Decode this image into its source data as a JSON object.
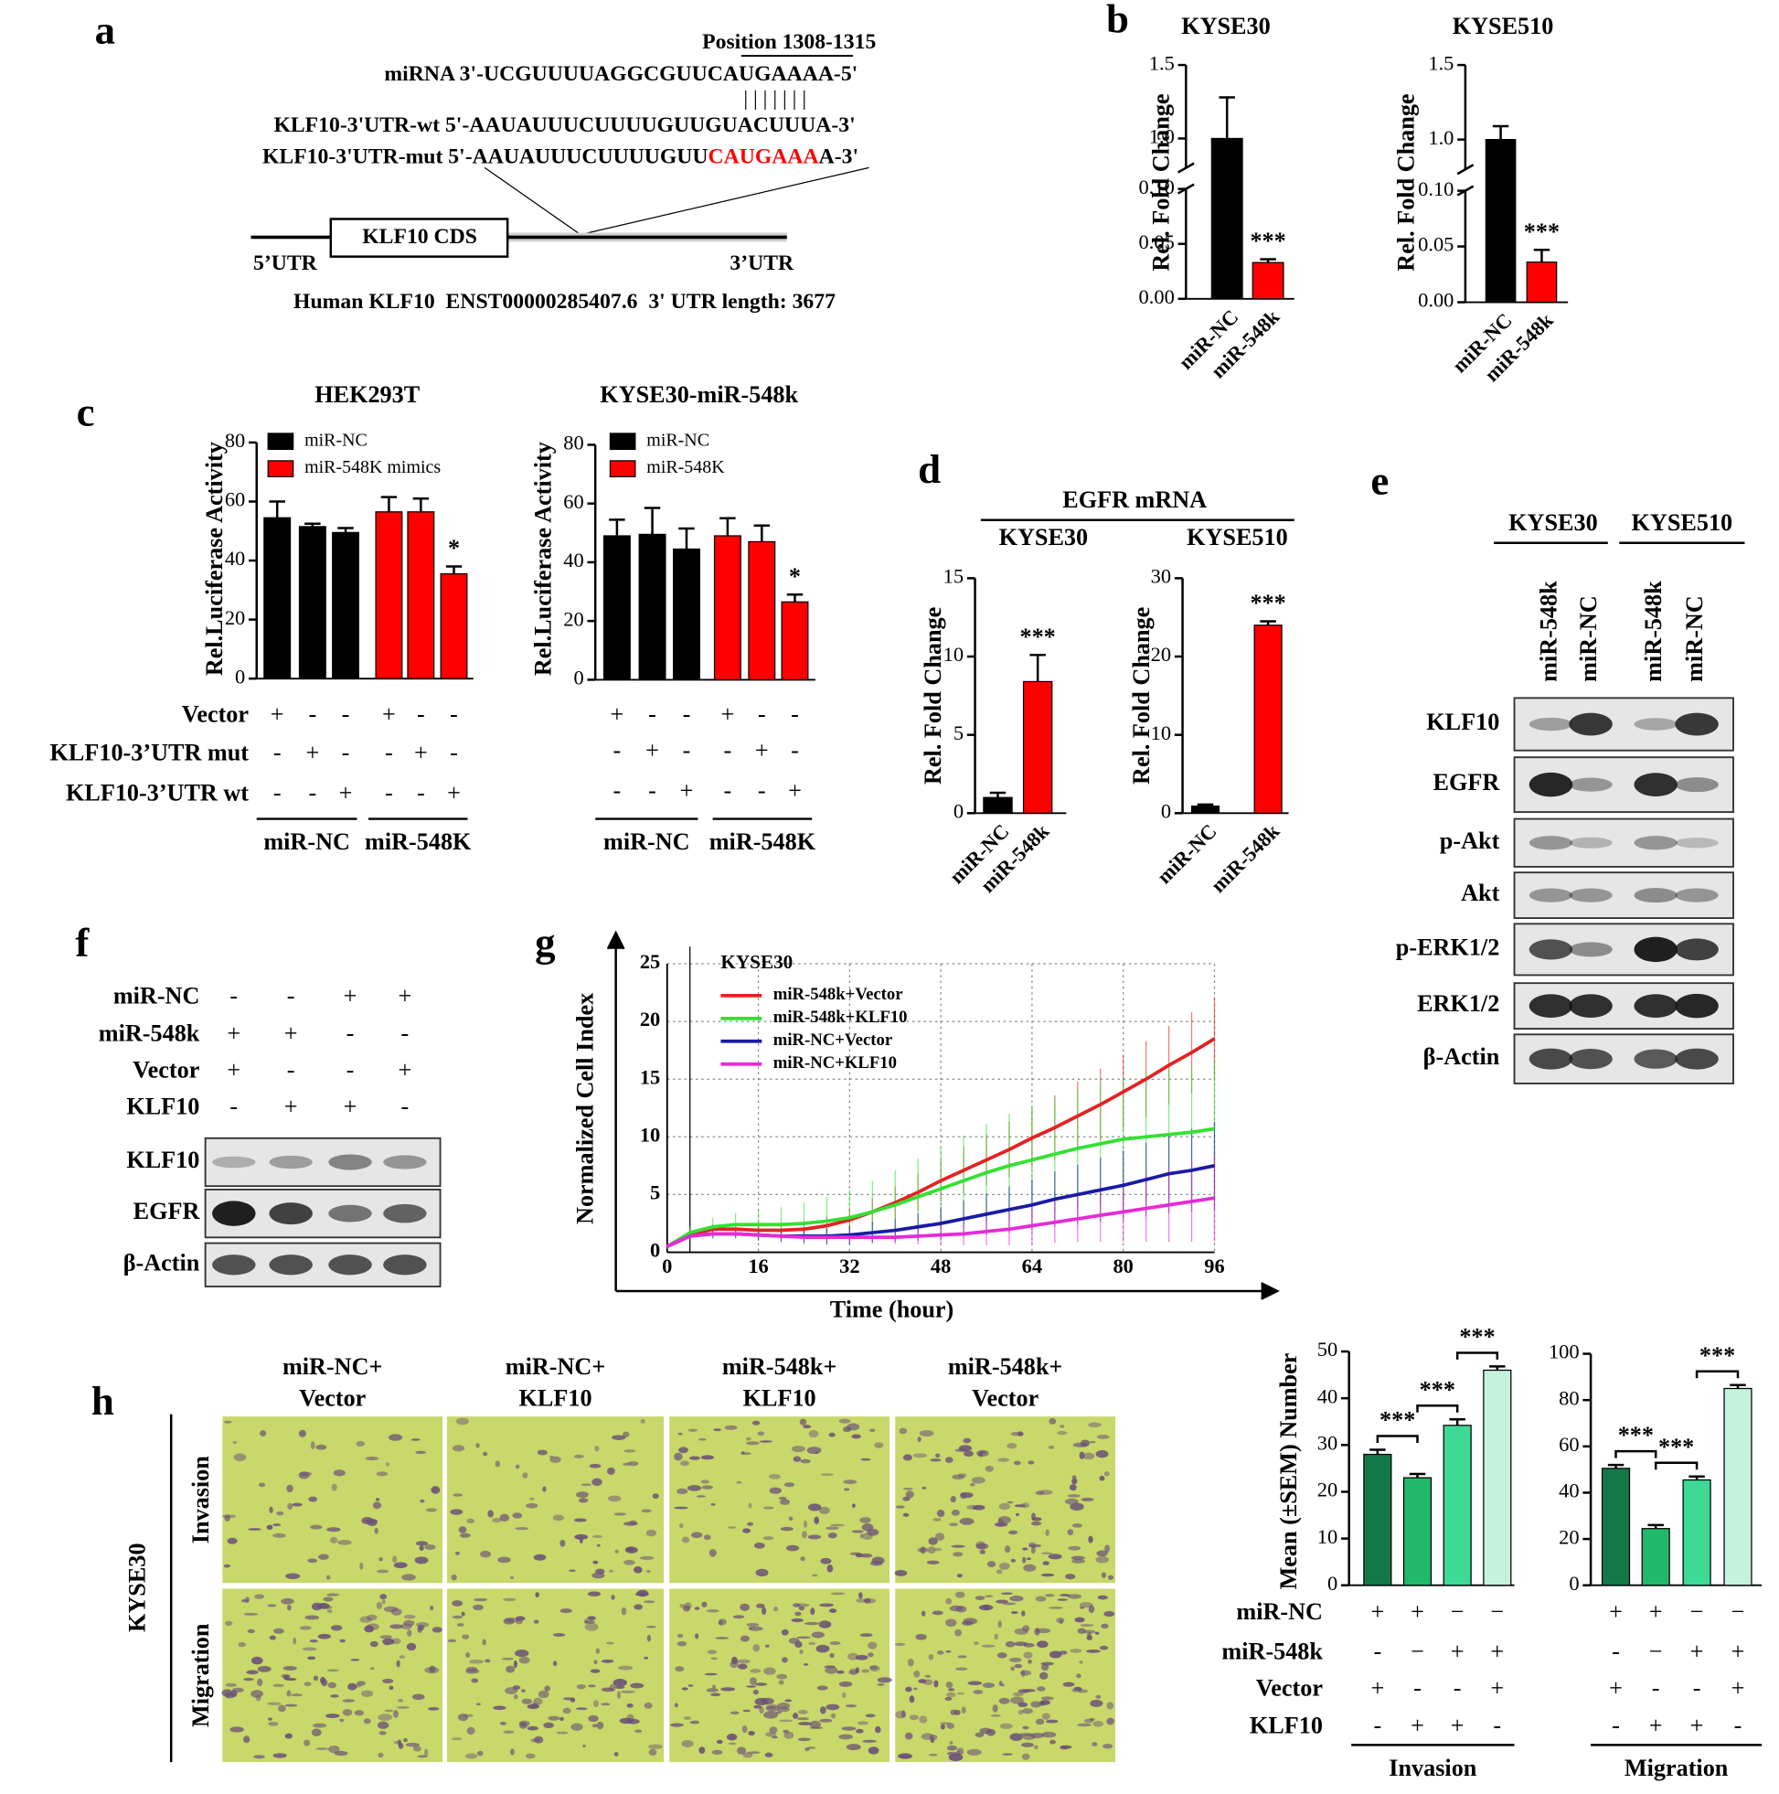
{
  "panel_labels": [
    "a",
    "b",
    "c",
    "d",
    "e",
    "f",
    "g",
    "h"
  ],
  "panel_a": {
    "position": "Position 1308-1315",
    "mirna": "miRNA 3'-UCGUUUUAGGCGUUCAUGAAAA-5'",
    "pairing": "| | | | | | |",
    "wt": "KLF10-3'UTR-wt 5'-AAUAUUUCUUUUGUUGUACUUUA-3'",
    "mut": [
      "KLF10-3'UTR-mut 5'-AAUAUUUCUUUUGUU",
      "CAUGAAA",
      "A-3'"
    ],
    "cds": "KLF10 CDS",
    "utr5": "5’UTR",
    "utr3": "3’UTR",
    "caption": "Human KLF10  ENST00000285407.6  3' UTR length: 3677"
  },
  "panel_d_header": "EGFR mRNA",
  "panel_e": {
    "cell_lines": [
      "KYSE30",
      "KYSE510"
    ],
    "lanes": [
      "miR-548k",
      "miR-NC",
      "miR-548k",
      "miR-NC"
    ],
    "proteins": [
      "KLF10",
      "EGFR",
      "p-Akt",
      "Akt",
      "p-ERK1/2",
      "ERK1/2",
      "β-Actin"
    ]
  },
  "panel_f": {
    "conditions": [
      {
        "label": "miR-NC",
        "signs": [
          "-",
          "-",
          "+",
          "+"
        ]
      },
      {
        "label": "miR-548k",
        "signs": [
          "+",
          "+",
          "-",
          "-"
        ]
      },
      {
        "label": "Vector",
        "signs": [
          "+",
          "-",
          "-",
          "+"
        ]
      },
      {
        "label": "KLF10",
        "signs": [
          "-",
          "+",
          "+",
          "-"
        ]
      }
    ],
    "proteins": [
      "KLF10",
      "EGFR",
      "β-Actin"
    ]
  },
  "panel_h_images": {
    "columns": [
      [
        "miR-NC+",
        "Vector"
      ],
      [
        "miR-NC+",
        "KLF10"
      ],
      [
        "miR-548k+",
        "KLF10"
      ],
      [
        "miR-548k+",
        "Vector"
      ]
    ],
    "rows": [
      "Invasion",
      "Migration"
    ],
    "cell_line": "KYSE30"
  },
  "chart_data": [
    {
      "type": "bar",
      "title": "KYSE30",
      "ylabel": "Rel. Fold Change",
      "categories": [
        "miR-NC",
        "miR-548k"
      ],
      "values": [
        1.0,
        0.033
      ],
      "errors": [
        0.28,
        0.003
      ],
      "colors": [
        "#000000",
        "#ff0000"
      ],
      "significance": [
        null,
        "***"
      ],
      "ylim": [
        0,
        1.5
      ],
      "ybreak": [
        0.1,
        0.8
      ],
      "yticks": [
        {
          "value": 0,
          "label": "0.00"
        },
        0.05,
        {
          "value": 0.1,
          "label": "0.10"
        },
        {
          "value": 1,
          "label": "1.0"
        },
        1.5
      ]
    },
    {
      "type": "bar",
      "title": "KYSE510",
      "ylabel": "Rel. Fold Change",
      "categories": [
        "miR-NC",
        "miR-548k"
      ],
      "values": [
        1.0,
        0.036
      ],
      "errors": [
        0.09,
        0.011
      ],
      "colors": [
        "#000000",
        "#ff0000"
      ],
      "significance": [
        null,
        "***"
      ],
      "ylim": [
        0,
        1.5
      ],
      "ybreak": [
        0.1,
        0.8
      ],
      "yticks": [
        {
          "value": 0,
          "label": "0.00"
        },
        0.05,
        {
          "value": 0.1,
          "label": "0.10"
        },
        {
          "value": 1,
          "label": "1.0"
        },
        1.5
      ]
    },
    {
      "type": "bar",
      "title": "HEK293T",
      "ylabel": "Rel.Luciferase Activity",
      "series": [
        {
          "name": "miR-NC",
          "color": "#000000",
          "values": [
            54.5,
            51.5,
            49.5
          ],
          "errors": [
            5.5,
            1,
            1.5
          ]
        },
        {
          "name": "miR-548K mimics",
          "color": "#ff0000",
          "values": [
            56.5,
            56.5,
            35.5
          ],
          "errors": [
            5,
            4.5,
            2.5
          ],
          "significance": [
            null,
            null,
            "*"
          ]
        }
      ],
      "ylim": [
        0,
        80
      ],
      "yticks": [
        0,
        20,
        40,
        60,
        80
      ],
      "conditions": [
        {
          "label": "Vector",
          "signs": [
            "+",
            "-",
            "-",
            "+",
            "-",
            "-"
          ]
        },
        {
          "label": "KLF10-3’UTR mut",
          "signs": [
            "-",
            "+",
            "-",
            "-",
            "+",
            "-"
          ]
        },
        {
          "label": "KLF10-3’UTR wt",
          "signs": [
            "-",
            "-",
            "+",
            "-",
            "-",
            "+"
          ]
        }
      ],
      "groups": [
        "miR-NC",
        "miR-548K"
      ]
    },
    {
      "type": "bar",
      "title": "KYSE30-miR-548k",
      "ylabel": "Rel.Luciferase Activity",
      "series": [
        {
          "name": "miR-NC",
          "color": "#000000",
          "values": [
            49,
            49.5,
            44.5
          ],
          "errors": [
            5.5,
            9,
            7
          ]
        },
        {
          "name": "miR-548K",
          "color": "#ff0000",
          "values": [
            49,
            47,
            26.5
          ],
          "errors": [
            6,
            5.5,
            2.5
          ],
          "significance": [
            null,
            null,
            "*"
          ]
        }
      ],
      "ylim": [
        0,
        80
      ],
      "yticks": [
        0,
        20,
        40,
        60,
        80
      ],
      "conditions": [
        {
          "signs": [
            "+",
            "-",
            "-",
            "+",
            "-",
            "-"
          ]
        },
        {
          "signs": [
            "-",
            "+",
            "-",
            "-",
            "+",
            "-"
          ]
        },
        {
          "signs": [
            "-",
            "-",
            "+",
            "-",
            "-",
            "+"
          ]
        }
      ],
      "groups": [
        "miR-NC",
        "miR-548K"
      ]
    },
    {
      "type": "bar",
      "title": "KYSE30",
      "ylabel": "Rel. Fold Change",
      "categories": [
        "miR-NC",
        "miR-548k"
      ],
      "values": [
        1.0,
        8.4
      ],
      "errors": [
        0.3,
        1.7
      ],
      "colors": [
        "#000000",
        "#ff0000"
      ],
      "significance": [
        null,
        "***"
      ],
      "ylim": [
        0,
        15
      ],
      "yticks": [
        0,
        5,
        10,
        15
      ]
    },
    {
      "type": "bar",
      "title": "KYSE510",
      "ylabel": "Rel. Fold Change",
      "categories": [
        "miR-NC",
        "miR-548k"
      ],
      "values": [
        0.9,
        24
      ],
      "errors": [
        0.2,
        0.5
      ],
      "colors": [
        "#000000",
        "#ff0000"
      ],
      "significance": [
        null,
        "***"
      ],
      "ylim": [
        0,
        30
      ],
      "yticks": [
        0,
        10,
        20,
        30
      ]
    },
    {
      "type": "line",
      "annotation": "KYSE30",
      "xlabel": "Time (hour)",
      "ylabel": "Normalized Cell Index",
      "x": [
        0,
        4,
        8,
        12,
        16,
        20,
        24,
        28,
        32,
        36,
        40,
        44,
        48,
        52,
        56,
        60,
        64,
        68,
        72,
        76,
        80,
        84,
        88,
        92,
        96
      ],
      "series": [
        {
          "name": "miR-548k+Vector",
          "color": "#e32222",
          "values": [
            0.5,
            1.5,
            2.0,
            2.0,
            1.9,
            1.9,
            2.0,
            2.3,
            2.8,
            3.5,
            4.3,
            5.2,
            6.2,
            7.1,
            8.0,
            8.9,
            9.9,
            10.8,
            11.8,
            12.8,
            13.9,
            15.0,
            16.2,
            17.3,
            18.5
          ],
          "errors": [
            0.2,
            0.3,
            0.4,
            0.4,
            0.5,
            0.6,
            0.7,
            0.8,
            1.0,
            1.2,
            1.4,
            1.6,
            1.8,
            2.0,
            2.2,
            2.4,
            2.6,
            2.8,
            3.0,
            3.1,
            3.2,
            3.3,
            3.4,
            3.5,
            3.6
          ]
        },
        {
          "name": "miR-548k+KLF10",
          "color": "#33e033",
          "values": [
            0.5,
            1.7,
            2.2,
            2.4,
            2.4,
            2.4,
            2.5,
            2.7,
            3.0,
            3.5,
            4.1,
            4.8,
            5.5,
            6.2,
            6.9,
            7.5,
            8.0,
            8.5,
            9.0,
            9.4,
            9.8,
            10.0,
            10.2,
            10.4,
            10.7
          ],
          "errors": [
            0.2,
            0.5,
            0.8,
            1.0,
            1.2,
            1.5,
            1.8,
            2.1,
            2.4,
            2.7,
            3.0,
            3.3,
            3.6,
            3.9,
            4.2,
            4.5,
            4.7,
            4.9,
            5.1,
            5.3,
            5.5,
            5.6,
            5.7,
            5.8,
            6.0
          ]
        },
        {
          "name": "miR-NC+Vector",
          "color": "#1a1aa8",
          "values": [
            0.5,
            1.4,
            1.6,
            1.6,
            1.5,
            1.4,
            1.4,
            1.4,
            1.5,
            1.7,
            1.9,
            2.2,
            2.5,
            2.9,
            3.3,
            3.7,
            4.1,
            4.6,
            5.0,
            5.4,
            5.8,
            6.3,
            6.8,
            7.1,
            7.5
          ],
          "errors": [
            0.2,
            0.3,
            0.4,
            0.4,
            0.5,
            0.5,
            0.6,
            0.7,
            0.8,
            0.9,
            1.0,
            1.2,
            1.4,
            1.6,
            1.8,
            2.0,
            2.2,
            2.4,
            2.6,
            2.8,
            3.0,
            3.2,
            3.4,
            3.6,
            3.8
          ]
        },
        {
          "name": "miR-NC+KLF10",
          "color": "#e62ad6",
          "values": [
            0.5,
            1.4,
            1.6,
            1.6,
            1.5,
            1.4,
            1.3,
            1.3,
            1.3,
            1.3,
            1.3,
            1.4,
            1.5,
            1.6,
            1.8,
            2.0,
            2.3,
            2.6,
            2.9,
            3.2,
            3.5,
            3.8,
            4.1,
            4.4,
            4.7
          ],
          "errors": [
            0.2,
            0.3,
            0.3,
            0.3,
            0.3,
            0.3,
            0.4,
            0.4,
            0.5,
            0.5,
            0.6,
            0.7,
            0.8,
            1.0,
            1.2,
            1.4,
            1.6,
            1.8,
            2.0,
            2.3,
            2.6,
            2.9,
            3.2,
            3.5,
            3.8
          ]
        }
      ],
      "xlim": [
        0,
        96
      ],
      "xticks": [
        0,
        16,
        32,
        48,
        64,
        80,
        96
      ],
      "ylim": [
        0,
        25
      ],
      "yticks": [
        0,
        5,
        10,
        15,
        20,
        25
      ],
      "grid": true
    },
    {
      "type": "bar",
      "ylabel": "Mean (±SEM) Number",
      "values": [
        28,
        23,
        34.2,
        46
      ],
      "errors": [
        1,
        0.8,
        1.3,
        0.8
      ],
      "colors": [
        "#137848",
        "#22b86a",
        "#3ed994",
        "#c4f2dc"
      ],
      "pair_labels": [
        "***",
        "***",
        "***"
      ],
      "ylim": [
        0,
        50
      ],
      "yticks": [
        0,
        10,
        20,
        30,
        40,
        50
      ],
      "conditions": [
        {
          "label": "miR-NC",
          "signs": [
            "+",
            "+",
            "−",
            "−"
          ]
        },
        {
          "label": "miR-548k",
          "signs": [
            "-",
            "−",
            "+",
            "+"
          ]
        },
        {
          "label": "Vector",
          "signs": [
            "+",
            "-",
            "-",
            "+"
          ]
        },
        {
          "label": "KLF10",
          "signs": [
            "-",
            "+",
            "+",
            "-"
          ]
        }
      ],
      "groups": [
        "Invasion"
      ]
    },
    {
      "type": "bar",
      "values": [
        50.5,
        24.5,
        45.5,
        85
      ],
      "errors": [
        1.5,
        1.5,
        1.5,
        1.5
      ],
      "colors": [
        "#137848",
        "#22b86a",
        "#3ed994",
        "#c4f2dc"
      ],
      "pair_labels": [
        "***",
        "***",
        "***"
      ],
      "ylim": [
        0,
        100
      ],
      "yticks": [
        0,
        20,
        40,
        60,
        80,
        100
      ],
      "conditions": [
        {
          "signs": [
            "+",
            "+",
            "−",
            "−"
          ]
        },
        {
          "signs": [
            "-",
            "−",
            "+",
            "+"
          ]
        },
        {
          "signs": [
            "+",
            "-",
            "-",
            "+"
          ]
        },
        {
          "signs": [
            "-",
            "+",
            "+",
            "-"
          ]
        }
      ],
      "groups": [
        "Migration"
      ]
    }
  ]
}
